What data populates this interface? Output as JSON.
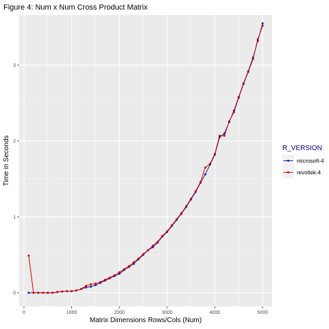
{
  "chart_data": {
    "type": "line",
    "title": "Figure 4: Num x Num Cross Product Matrix",
    "xlabel": "Matrix Dimensions Rows/Cols (Num)",
    "ylabel": "Time in Seconds",
    "xlim": [
      -100,
      5200
    ],
    "ylim": [
      -0.18,
      3.66
    ],
    "x_ticks": [
      0,
      1000,
      2000,
      3000,
      4000,
      5000
    ],
    "y_ticks": [
      0,
      1,
      2,
      3
    ],
    "grid": true,
    "legend": {
      "title": "R_VERSION",
      "position": "right"
    },
    "series": [
      {
        "name": "microsoft-4",
        "color": "#1a1aa0",
        "points": [
          [
            100,
            0.0
          ],
          [
            200,
            0.0
          ],
          [
            300,
            0.0
          ],
          [
            400,
            0.0
          ],
          [
            500,
            0.0
          ],
          [
            600,
            0.0
          ],
          [
            700,
            0.01
          ],
          [
            800,
            0.015
          ],
          [
            900,
            0.02
          ],
          [
            1000,
            0.02
          ],
          [
            1100,
            0.03
          ],
          [
            1200,
            0.05
          ],
          [
            1300,
            0.07
          ],
          [
            1400,
            0.08
          ],
          [
            1500,
            0.1
          ],
          [
            1600,
            0.13
          ],
          [
            1700,
            0.16
          ],
          [
            1800,
            0.19
          ],
          [
            1900,
            0.22
          ],
          [
            2000,
            0.25
          ],
          [
            2100,
            0.3
          ],
          [
            2200,
            0.34
          ],
          [
            2300,
            0.38
          ],
          [
            2400,
            0.44
          ],
          [
            2500,
            0.5
          ],
          [
            2600,
            0.56
          ],
          [
            2700,
            0.6
          ],
          [
            2800,
            0.66
          ],
          [
            2900,
            0.74
          ],
          [
            3000,
            0.8
          ],
          [
            3100,
            0.88
          ],
          [
            3200,
            0.96
          ],
          [
            3300,
            1.04
          ],
          [
            3400,
            1.13
          ],
          [
            3500,
            1.23
          ],
          [
            3600,
            1.33
          ],
          [
            3700,
            1.45
          ],
          [
            3800,
            1.56
          ],
          [
            3900,
            1.69
          ],
          [
            4000,
            1.82
          ],
          [
            4100,
            2.05
          ],
          [
            4200,
            2.1
          ],
          [
            4300,
            2.25
          ],
          [
            4400,
            2.4
          ],
          [
            4500,
            2.58
          ],
          [
            4600,
            2.76
          ],
          [
            4700,
            2.92
          ],
          [
            4800,
            3.1
          ],
          [
            4900,
            3.32
          ],
          [
            5000,
            3.55
          ]
        ]
      },
      {
        "name": "revoltek-4",
        "color": "#cc0000",
        "points": [
          [
            100,
            0.49
          ],
          [
            200,
            0.0
          ],
          [
            300,
            0.0
          ],
          [
            400,
            0.0
          ],
          [
            500,
            0.0
          ],
          [
            600,
            0.0
          ],
          [
            700,
            0.01
          ],
          [
            800,
            0.015
          ],
          [
            900,
            0.02
          ],
          [
            1000,
            0.02
          ],
          [
            1100,
            0.03
          ],
          [
            1200,
            0.05
          ],
          [
            1300,
            0.09
          ],
          [
            1400,
            0.11
          ],
          [
            1500,
            0.12
          ],
          [
            1600,
            0.14
          ],
          [
            1700,
            0.17
          ],
          [
            1800,
            0.2
          ],
          [
            1900,
            0.23
          ],
          [
            2000,
            0.27
          ],
          [
            2100,
            0.31
          ],
          [
            2200,
            0.35
          ],
          [
            2300,
            0.4
          ],
          [
            2400,
            0.45
          ],
          [
            2500,
            0.51
          ],
          [
            2600,
            0.56
          ],
          [
            2700,
            0.62
          ],
          [
            2800,
            0.67
          ],
          [
            2900,
            0.75
          ],
          [
            3000,
            0.81
          ],
          [
            3100,
            0.89
          ],
          [
            3200,
            0.97
          ],
          [
            3300,
            1.05
          ],
          [
            3400,
            1.14
          ],
          [
            3500,
            1.24
          ],
          [
            3600,
            1.34
          ],
          [
            3700,
            1.46
          ],
          [
            3800,
            1.65
          ],
          [
            3900,
            1.7
          ],
          [
            4000,
            1.83
          ],
          [
            4100,
            2.07
          ],
          [
            4200,
            2.07
          ],
          [
            4300,
            2.26
          ],
          [
            4400,
            2.38
          ],
          [
            4500,
            2.57
          ],
          [
            4600,
            2.75
          ],
          [
            4700,
            2.91
          ],
          [
            4800,
            3.08
          ],
          [
            4900,
            3.34
          ],
          [
            5000,
            3.52
          ]
        ]
      }
    ]
  }
}
